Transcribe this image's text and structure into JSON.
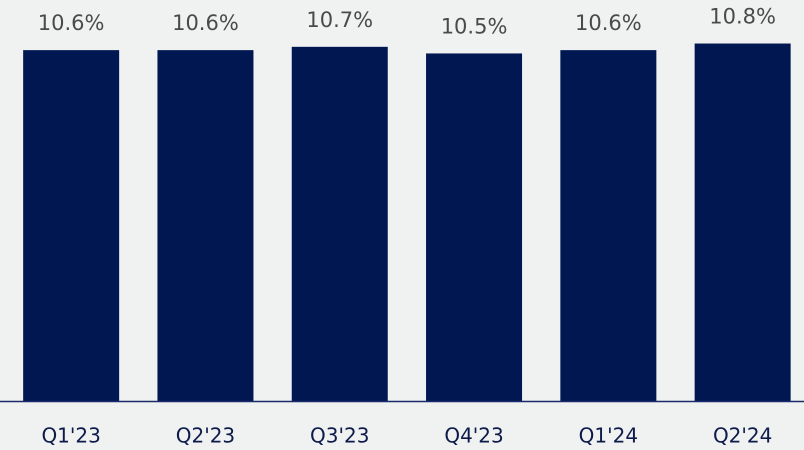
{
  "chart_data": {
    "type": "bar",
    "categories": [
      "Q1'23",
      "Q2'23",
      "Q3'23",
      "Q4'23",
      "Q1'24",
      "Q2'24"
    ],
    "values": [
      10.6,
      10.6,
      10.7,
      10.5,
      10.6,
      10.8
    ],
    "value_labels": [
      "10.6%",
      "10.6%",
      "10.7%",
      "10.5%",
      "10.6%",
      "10.8%"
    ],
    "color": "#001752"
  }
}
